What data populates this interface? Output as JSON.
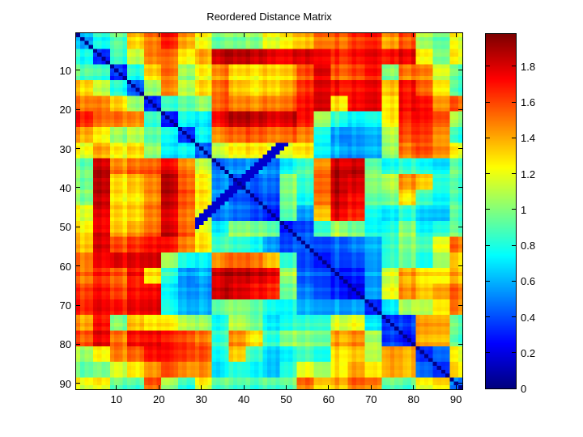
{
  "figure": {
    "background": "#ffffff"
  },
  "chart_data": {
    "type": "heatmap",
    "title": "Reordered Distance Matrix",
    "n": 91,
    "colormap": "jet",
    "clim": [
      0,
      1.98
    ],
    "grid": false,
    "x_ticks": [
      10,
      20,
      30,
      40,
      50,
      60,
      70,
      80,
      90
    ],
    "y_ticks": [
      10,
      20,
      30,
      40,
      50,
      60,
      70,
      80,
      90
    ],
    "colorbar_ticks": [
      {
        "value": 0,
        "label": "0"
      },
      {
        "value": 0.2,
        "label": "0.2"
      },
      {
        "value": 0.4,
        "label": "0.4"
      },
      {
        "value": 0.6,
        "label": "0.6"
      },
      {
        "value": 0.8,
        "label": "0.8"
      },
      {
        "value": 1,
        "label": "1"
      },
      {
        "value": 1.2,
        "label": "1.2"
      },
      {
        "value": 1.4,
        "label": "1.4"
      },
      {
        "value": 1.6,
        "label": "1.6"
      },
      {
        "value": 1.8,
        "label": "1.8"
      }
    ],
    "matrix_downsample": 23,
    "symmetric": true,
    "diagonal_value": 0.02,
    "antidiagonal_feature": {
      "index_sum": 78,
      "index_range": [
        29,
        50
      ],
      "value": 0.15
    },
    "matrix_upper_triangle": [
      [
        0.6,
        0.8,
        0.9,
        1.3,
        1.5,
        1.7,
        1.45,
        1.2,
        0.95,
        0.95,
        1.0,
        1.2,
        1.3,
        1.35,
        1.55,
        1.55,
        1.65,
        1.7,
        1.45,
        1.6,
        1.1,
        0.95,
        1.2
      ],
      [
        0.35,
        0.85,
        1.1,
        1.5,
        1.55,
        1.3,
        1.4,
        1.85,
        1.85,
        1.85,
        1.8,
        1.8,
        1.8,
        1.8,
        1.7,
        1.75,
        1.8,
        1.75,
        1.8,
        1.3,
        1.0,
        1.25
      ],
      [
        0.3,
        0.75,
        1.3,
        1.5,
        1.05,
        1.2,
        1.45,
        1.25,
        1.25,
        1.3,
        1.35,
        1.55,
        1.8,
        1.55,
        1.6,
        1.7,
        1.0,
        1.5,
        1.5,
        1.15,
        0.9
      ],
      [
        0.35,
        1.0,
        1.45,
        1.1,
        1.25,
        1.5,
        1.3,
        1.25,
        1.3,
        1.4,
        1.6,
        1.8,
        1.7,
        1.7,
        1.75,
        1.35,
        1.7,
        1.55,
        1.25,
        0.85
      ],
      [
        0.3,
        0.85,
        0.95,
        1.0,
        1.55,
        1.45,
        1.45,
        1.5,
        1.55,
        1.7,
        1.85,
        1.3,
        1.75,
        1.8,
        1.3,
        1.75,
        1.75,
        1.45,
        1.55
      ],
      [
        0.3,
        0.8,
        0.7,
        1.75,
        1.85,
        1.85,
        1.8,
        1.85,
        1.7,
        1.1,
        0.85,
        0.75,
        0.8,
        1.3,
        1.7,
        1.75,
        1.6,
        1.05
      ],
      [
        0.4,
        0.75,
        1.5,
        1.55,
        1.6,
        1.55,
        1.6,
        1.5,
        0.85,
        0.6,
        0.6,
        0.65,
        1.15,
        1.65,
        1.7,
        1.5,
        0.85
      ],
      [
        0.4,
        1.1,
        1.2,
        1.25,
        1.2,
        1.2,
        1.25,
        0.75,
        0.6,
        0.55,
        0.6,
        1.05,
        1.5,
        1.6,
        1.45,
        1.2
      ],
      [
        0.45,
        0.5,
        0.55,
        0.5,
        0.75,
        0.85,
        1.5,
        1.85,
        1.85,
        0.95,
        0.8,
        0.85,
        0.8,
        0.7,
        0.9
      ],
      [
        0.35,
        0.4,
        0.45,
        1.0,
        0.8,
        1.55,
        1.85,
        1.8,
        1.0,
        1.1,
        1.45,
        1.35,
        0.8,
        0.85
      ],
      [
        0.35,
        0.4,
        1.0,
        0.75,
        1.55,
        1.85,
        1.75,
        0.95,
        1.0,
        1.3,
        0.9,
        0.75,
        0.85
      ],
      [
        0.3,
        0.95,
        0.55,
        1.4,
        1.8,
        1.7,
        0.8,
        0.75,
        0.85,
        0.7,
        0.65,
        0.9
      ],
      [
        0.35,
        0.4,
        0.9,
        1.1,
        1.0,
        0.8,
        0.85,
        1.05,
        0.8,
        0.85,
        0.95
      ],
      [
        0.4,
        0.4,
        0.45,
        0.5,
        0.6,
        0.85,
        1.0,
        0.9,
        1.2,
        1.5
      ],
      [
        0.35,
        0.45,
        0.45,
        0.6,
        0.9,
        1.0,
        0.85,
        1.1,
        1.35
      ],
      [
        0.35,
        0.35,
        0.6,
        1.2,
        1.45,
        1.35,
        1.3,
        1.4
      ],
      [
        0.25,
        0.6,
        1.25,
        1.5,
        1.4,
        1.45,
        1.55
      ],
      [
        0.35,
        0.75,
        1.1,
        1.15,
        1.3,
        1.5
      ],
      [
        0.4,
        0.4,
        1.5,
        1.45,
        0.95
      ],
      [
        0.3,
        1.45,
        1.4,
        0.9
      ],
      [
        0.4,
        0.5,
        1.25
      ],
      [
        0.35,
        1.3
      ],
      [
        0.45
      ]
    ]
  }
}
